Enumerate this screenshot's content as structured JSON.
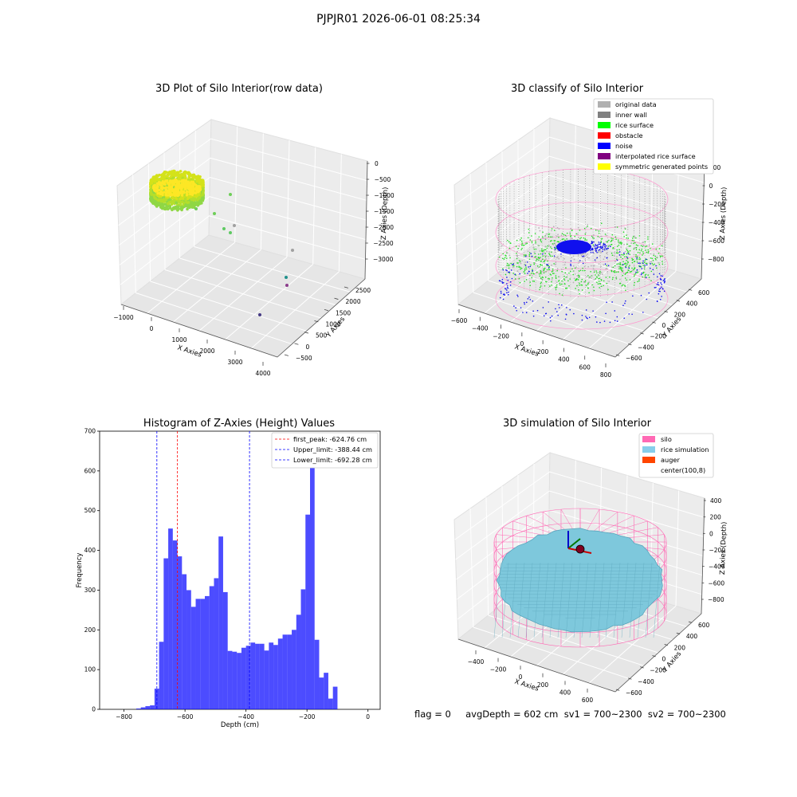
{
  "figure": {
    "suptitle": "PJPJR01 2026-06-01 08:25:34",
    "info_line": "flag = 0     avgDepth = 602 cm  sv1 = 700~2300  sv2 = 700~2300"
  },
  "chart_data": [
    {
      "type": "scatter",
      "title": "3D Plot of Silo Interior(row data)",
      "projection": "3d",
      "xlabel": "X Axies",
      "ylabel": "Y Axies",
      "zlabel": "Z Axies (Depth)",
      "x_ticks": [
        "−1000",
        "0",
        "1000",
        "2000",
        "3000",
        "4000"
      ],
      "y_ticks": [
        "−500",
        "0",
        "500",
        "1000",
        "1500",
        "2000",
        "2500"
      ],
      "z_ticks": [
        "−3000",
        "−2500",
        "−2000",
        "−1500",
        "−1000",
        "−500",
        "0"
      ],
      "xlim": [
        -1000,
        4200
      ],
      "ylim": [
        -600,
        2600
      ],
      "zlim": [
        -3100,
        100
      ],
      "colormap": "viridis",
      "notes": "dense cylindrical cluster of points (green-yellow) plus a few outliers",
      "outliers": [
        {
          "x": 1300,
          "y": 1800,
          "z": -900
        },
        {
          "x": 1500,
          "y": 1200,
          "z": -1500
        },
        {
          "x": 1800,
          "y": 800,
          "z": -1900
        },
        {
          "x": 2000,
          "y": 700,
          "z": -1950
        },
        {
          "x": 2200,
          "y": 900,
          "z": -1800
        },
        {
          "x": 3200,
          "y": 600,
          "z": -2600
        },
        {
          "x": 3500,
          "y": 200,
          "z": -2800
        },
        {
          "x": 3600,
          "y": 100,
          "z": -2900
        },
        {
          "x": 3700,
          "y": -200,
          "z": -3000
        }
      ]
    },
    {
      "type": "scatter",
      "title": "3D classify of Silo Interior",
      "projection": "3d",
      "xlabel": "X Axies",
      "ylabel": "Y Axies",
      "zlabel": "Z Axies (Depth)",
      "x_ticks": [
        "−600",
        "−400",
        "−200",
        "0",
        "200",
        "400",
        "600",
        "800"
      ],
      "y_ticks": [
        "−600",
        "−400",
        "−200",
        "0",
        "200",
        "400",
        "600"
      ],
      "z_ticks": [
        "−800",
        "−600",
        "−400",
        "−200",
        "0",
        "200"
      ],
      "legend": [
        {
          "label": "original data",
          "color": "#b0b0b0"
        },
        {
          "label": "inner wall",
          "color": "#808080"
        },
        {
          "label": "rice surface",
          "color": "#00ff00"
        },
        {
          "label": "obstacle",
          "color": "#ff0000"
        },
        {
          "label": "noise",
          "color": "#0000ff"
        },
        {
          "label": "interpolated rice surface",
          "color": "#800080"
        },
        {
          "label": "symmetric generated points",
          "color": "#ffff00"
        }
      ],
      "legend_loc": "upper right"
    },
    {
      "type": "bar",
      "title": "Histogram of Z-Axies (Height) Values",
      "xlabel": "Depth (cm)",
      "ylabel": "Frequency",
      "xlim": [
        -880,
        40
      ],
      "ylim": [
        0,
        700
      ],
      "x_ticks": [
        -800,
        -600,
        -400,
        -200,
        0
      ],
      "x_tick_labels": [
        "−800",
        "−600",
        "−400",
        "−200",
        "0"
      ],
      "y_ticks": [
        0,
        100,
        200,
        300,
        400,
        500,
        600,
        700
      ],
      "bin_start": -760,
      "bin_width": 15,
      "values": [
        2,
        5,
        8,
        10,
        52,
        170,
        380,
        455,
        425,
        385,
        340,
        300,
        258,
        278,
        278,
        285,
        310,
        330,
        435,
        295,
        147,
        145,
        142,
        155,
        160,
        168,
        165,
        165,
        148,
        168,
        162,
        178,
        188,
        188,
        200,
        238,
        302,
        490,
        662,
        175,
        80,
        92,
        27,
        57
      ],
      "bar_color": "#0000ff",
      "bar_alpha": 0.7,
      "vlines": [
        {
          "label": "first_peak: -624.76 cm",
          "x": -624.76,
          "color": "#ff0000"
        },
        {
          "label": "Upper_limit: -388.44 cm",
          "x": -388.44,
          "color": "#0000ff"
        },
        {
          "label": "Lower_limit: -692.28 cm",
          "x": -692.28,
          "color": "#0000ff"
        }
      ],
      "legend_loc": "upper right"
    },
    {
      "type": "surface",
      "title": "3D simulation of Silo Interior",
      "projection": "3d",
      "xlabel": "X Axies",
      "ylabel": "Y Axies",
      "zlabel": "Z Axies (Depth)",
      "x_ticks": [
        "−400",
        "−200",
        "0",
        "200",
        "400",
        "600"
      ],
      "y_ticks": [
        "−600",
        "−400",
        "−200",
        "0",
        "200",
        "400",
        "600"
      ],
      "z_ticks": [
        "−800",
        "−600",
        "−400",
        "−200",
        "0",
        "200",
        "400"
      ],
      "legend": [
        {
          "label": "silo",
          "color": "#ff69b4"
        },
        {
          "label": "rice simulation",
          "color": "#87ceeb"
        },
        {
          "label": "auger",
          "color": "#ff4500"
        },
        {
          "label": "center(100,8)",
          "color": "none"
        }
      ],
      "legend_loc": "upper right"
    }
  ]
}
